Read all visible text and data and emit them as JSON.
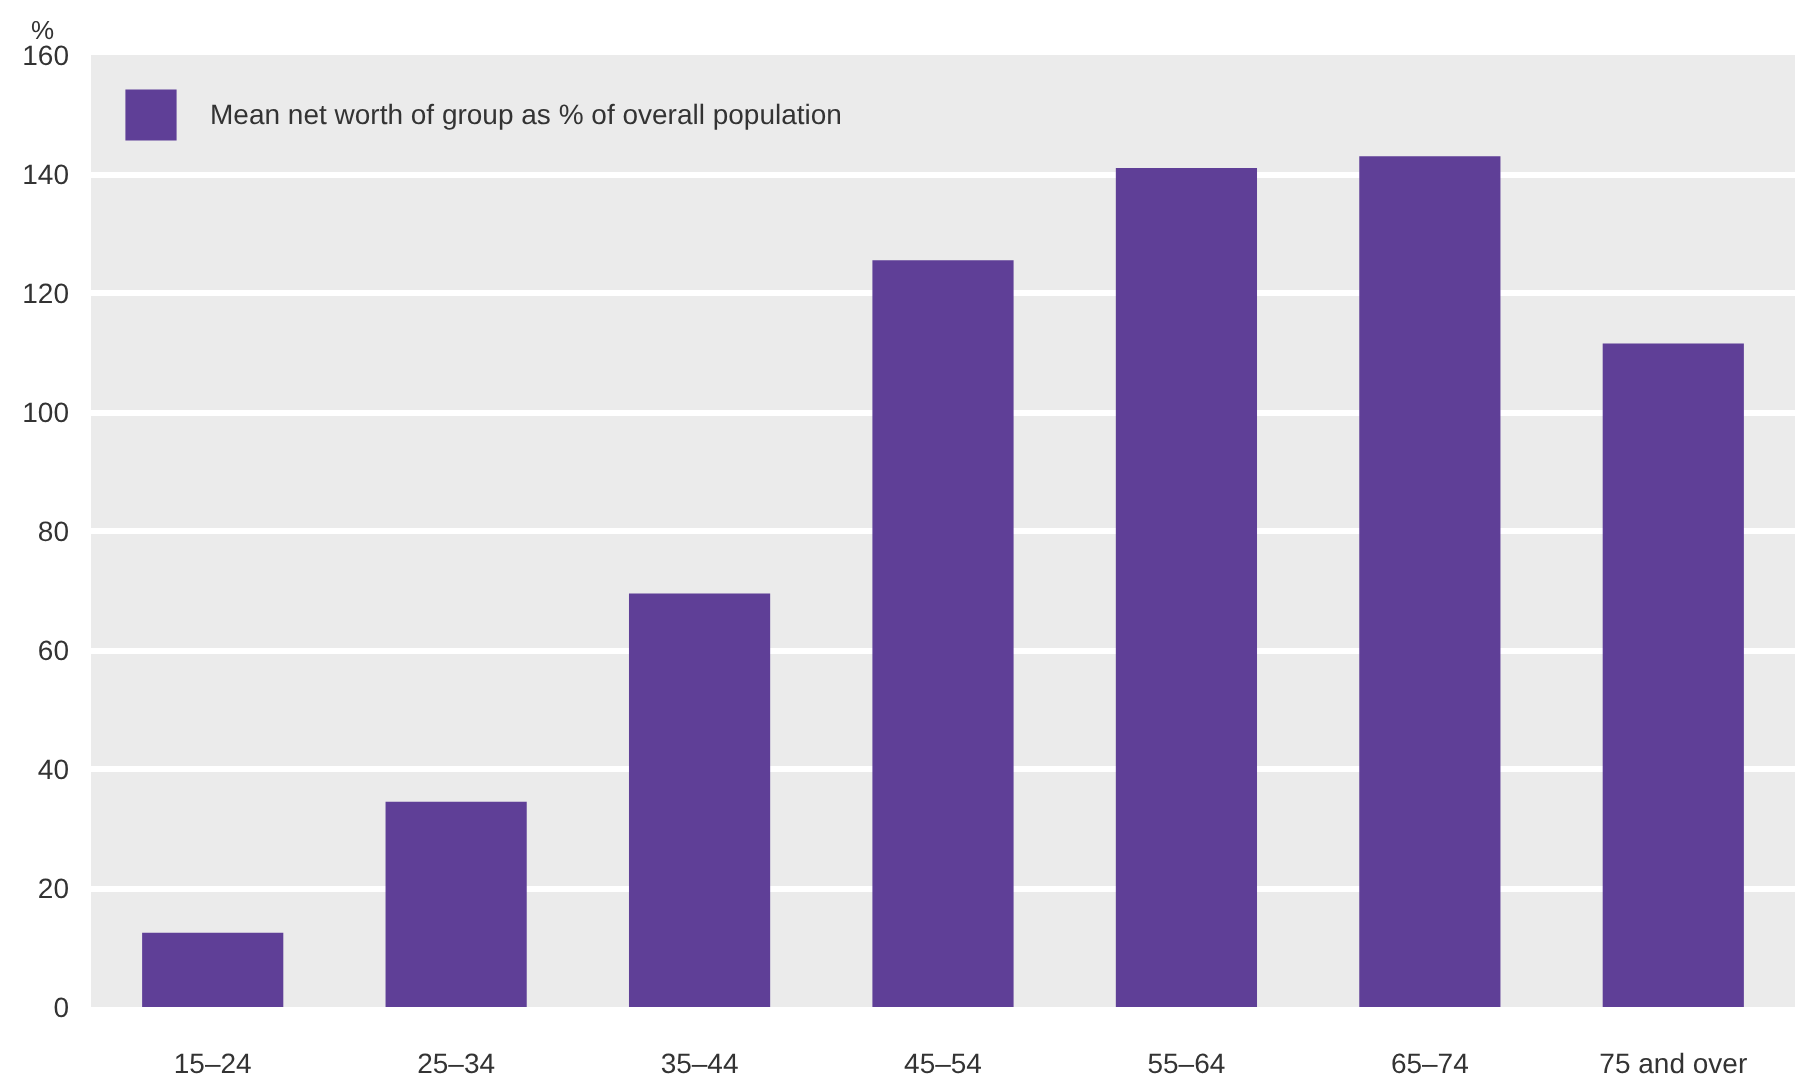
{
  "chart_data": {
    "type": "bar",
    "ylabel": "%",
    "categories": [
      "15–24",
      "25–34",
      "35–44",
      "45–54",
      "55–64",
      "65–74",
      "75 and over"
    ],
    "series": [
      {
        "name": "Mean net worth of group as % of overall population",
        "color": "#5f3f97",
        "values": [
          12.5,
          34.5,
          69.5,
          125.5,
          141,
          143,
          111.5
        ]
      }
    ],
    "ylim": [
      0,
      160
    ],
    "yticks": [
      0,
      20,
      40,
      60,
      80,
      100,
      120,
      140,
      160
    ],
    "grid": "y",
    "legend": "top left"
  }
}
